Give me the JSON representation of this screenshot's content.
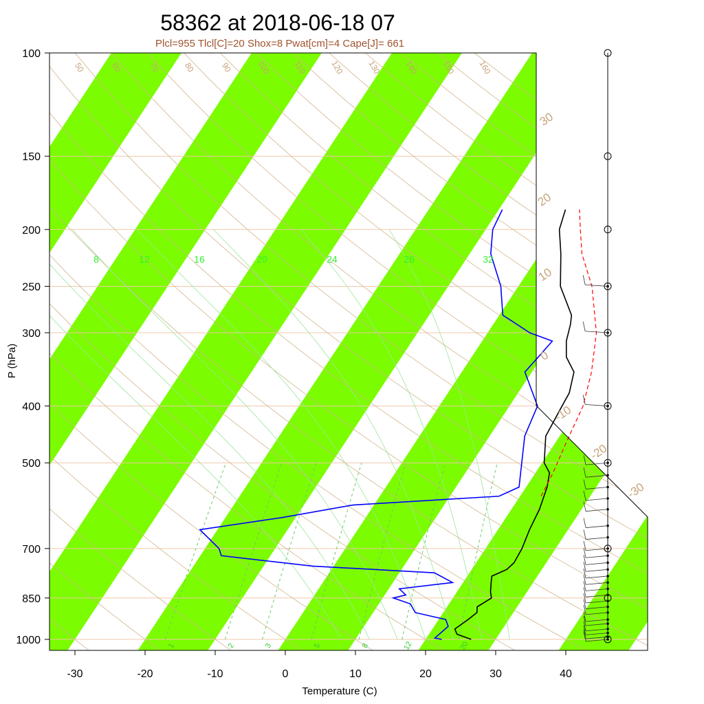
{
  "chart_data": {
    "type": "skew-t",
    "title": "58362 at 2018-06-18 07",
    "subtitle": "Plcl=955 Tlcl[C]=20 Shox=8 Pwat[cm]=4 Cape[J]= 661",
    "xlabel": "Temperature (C)",
    "ylabel": "P (hPa)",
    "xlim": [
      -33,
      52
    ],
    "ylim": [
      1050,
      100
    ],
    "y_scale": "log",
    "x_ticks": [
      -30,
      -20,
      -10,
      0,
      10,
      20,
      30,
      40
    ],
    "x_tick_labels": [
      "-30",
      "-20",
      "-10",
      "0",
      "10",
      "20",
      "30",
      "40"
    ],
    "pressure_levels": [
      1000,
      850,
      700,
      500,
      400,
      300,
      250,
      200,
      150,
      100
    ],
    "pressure_labels": [
      "1000",
      "850",
      "700",
      "500",
      "400",
      "300",
      "250",
      "200",
      "150",
      "100"
    ],
    "isotherm_band_color": "#7cfc00",
    "mixing_ratio_labels": [
      "8",
      "12",
      "16",
      "20",
      "24",
      "28",
      "32"
    ],
    "mixing_ratio_bottom_labels": [
      "1",
      "2",
      "3",
      "5",
      "8",
      "12",
      "20"
    ],
    "dry_adiabat_top_labels": [
      "50",
      "60",
      "70",
      "80",
      "90",
      "100",
      "110",
      "120",
      "130",
      "140",
      "150",
      "160"
    ],
    "isotherm_edge_labels": [
      "-30",
      "-20",
      "-10",
      "0",
      "10",
      "20",
      "30"
    ],
    "series": [
      {
        "name": "Temperature",
        "color": "#000000",
        "points": [
          [
            1000,
            26.5
          ],
          [
            980,
            24
          ],
          [
            960,
            23.2
          ],
          [
            925,
            24.2
          ],
          [
            900,
            24.8
          ],
          [
            880,
            24.3
          ],
          [
            850,
            25.5
          ],
          [
            830,
            24.8
          ],
          [
            800,
            24.0
          ],
          [
            780,
            23.5
          ],
          [
            760,
            25.0
          ],
          [
            740,
            25.4
          ],
          [
            700,
            25.2
          ],
          [
            650,
            24.5
          ],
          [
            600,
            24.0
          ],
          [
            550,
            23.0
          ],
          [
            520,
            22.0
          ],
          [
            500,
            20.3
          ],
          [
            450,
            18.0
          ],
          [
            400,
            17.5
          ],
          [
            380,
            17.3
          ],
          [
            350,
            16.0
          ],
          [
            330,
            13.5
          ],
          [
            310,
            12.0
          ],
          [
            290,
            11.0
          ],
          [
            280,
            10.3
          ],
          [
            250,
            6.0
          ],
          [
            220,
            3.0
          ],
          [
            200,
            0.5
          ],
          [
            185,
            -0.5
          ]
        ]
      },
      {
        "name": "Dewpoint",
        "color": "#0000ff",
        "points": [
          [
            1000,
            22.3
          ],
          [
            995,
            21.2
          ],
          [
            950,
            22.0
          ],
          [
            925,
            21.0
          ],
          [
            900,
            16.0
          ],
          [
            870,
            14.5
          ],
          [
            850,
            11.5
          ],
          [
            840,
            13.0
          ],
          [
            820,
            11.5
          ],
          [
            800,
            18.5
          ],
          [
            770,
            15.0
          ],
          [
            750,
            -3.0
          ],
          [
            720,
            -17.0
          ],
          [
            700,
            -18.0
          ],
          [
            650,
            -22.5
          ],
          [
            620,
            -12.0
          ],
          [
            590,
            -3.0
          ],
          [
            570,
            17.0
          ],
          [
            550,
            19.0
          ],
          [
            450,
            15.0
          ],
          [
            400,
            14.0
          ],
          [
            350,
            9.0
          ],
          [
            330,
            9.5
          ],
          [
            310,
            10.0
          ],
          [
            300,
            6.0
          ],
          [
            280,
            0.5
          ],
          [
            250,
            -2.5
          ],
          [
            220,
            -7.0
          ],
          [
            200,
            -9.0
          ],
          [
            185,
            -9.5
          ]
        ]
      },
      {
        "name": "Parcel",
        "color": "#ff0000",
        "points": [
          [
            570,
            23.0
          ],
          [
            520,
            22.5
          ],
          [
            460,
            21.5
          ],
          [
            400,
            20.5
          ],
          [
            350,
            18.5
          ],
          [
            300,
            15.5
          ],
          [
            250,
            10.5
          ],
          [
            220,
            6.0
          ],
          [
            200,
            3.5
          ],
          [
            185,
            1.5
          ]
        ]
      }
    ],
    "wind_barb_levels": [
      1000,
      990,
      975,
      960,
      940,
      925,
      900,
      880,
      860,
      840,
      820,
      800,
      780,
      760,
      740,
      720,
      700,
      670,
      640,
      600,
      575,
      550,
      525,
      500,
      400,
      300,
      250
    ]
  }
}
